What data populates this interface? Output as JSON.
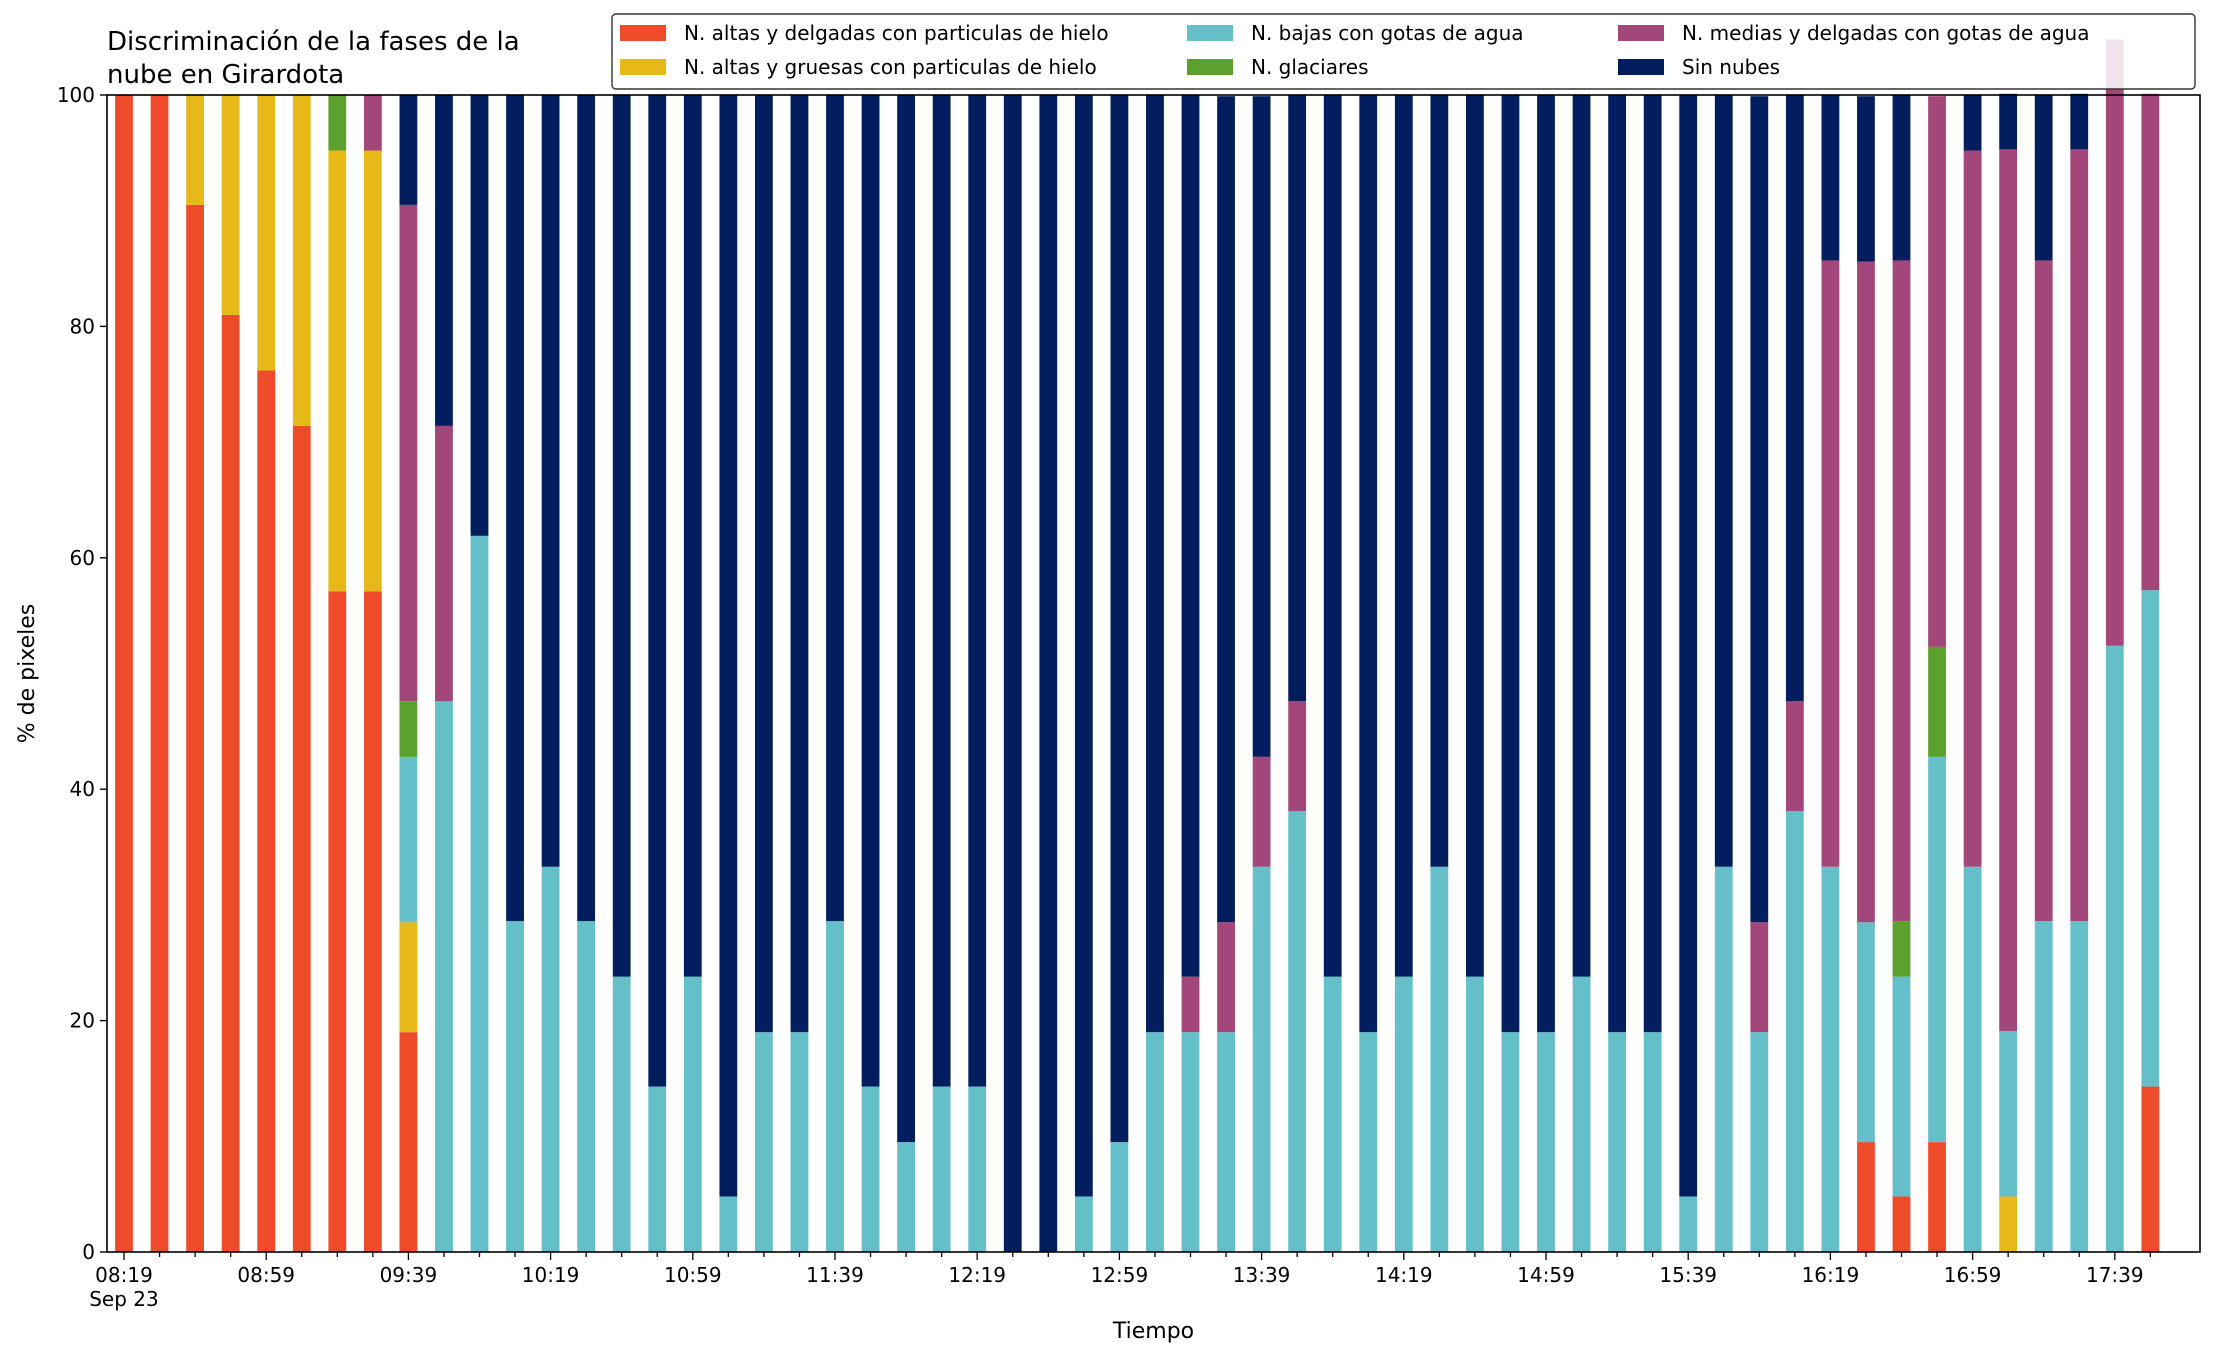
{
  "chart_data": {
    "type": "bar",
    "stacked": true,
    "title": "Discriminación de la fases de la\nnube en Girardota",
    "xlabel": "Tiempo",
    "ylabel": "% de pixeles",
    "ylim": [
      0,
      100
    ],
    "yticks": [
      0,
      20,
      40,
      60,
      80,
      100
    ],
    "x_tick_labels": [
      "08:19\nSep 23",
      "08:59",
      "09:39",
      "10:19",
      "10:59",
      "11:39",
      "12:19",
      "12:59",
      "13:39",
      "14:19",
      "14:59",
      "15:39",
      "16:19",
      "16:59",
      "17:39"
    ],
    "grid": false,
    "legend_position": "top-right",
    "categories": [
      "08:19",
      "08:29",
      "08:39",
      "08:49",
      "08:59",
      "09:09",
      "09:19",
      "09:29",
      "09:39",
      "09:49",
      "09:59",
      "10:09",
      "10:19",
      "10:29",
      "10:39",
      "10:49",
      "10:59",
      "11:09",
      "11:19",
      "11:29",
      "11:39",
      "11:49",
      "11:59",
      "12:09",
      "12:19",
      "12:29",
      "12:39",
      "12:49",
      "12:59",
      "13:09",
      "13:19",
      "13:29",
      "13:39",
      "13:49",
      "13:59",
      "14:09",
      "14:19",
      "14:29",
      "14:39",
      "14:49",
      "14:59",
      "15:09",
      "15:19",
      "15:29",
      "15:39",
      "15:49",
      "15:59",
      "16:09",
      "16:19",
      "16:29",
      "16:39",
      "16:49",
      "16:59",
      "17:09",
      "17:19",
      "17:29",
      "17:39",
      "17:49"
    ],
    "series": [
      {
        "name": "N. altas y delgadas con particulas de hielo",
        "color": "#ee4b2b",
        "values": [
          100,
          100,
          90.5,
          81,
          76.2,
          71.4,
          57.1,
          57.1,
          19,
          0,
          0,
          0,
          0,
          0,
          0,
          0,
          0,
          0,
          0,
          0,
          0,
          0,
          0,
          0,
          0,
          0,
          0,
          0,
          0,
          0,
          0,
          0,
          0,
          0,
          0,
          0,
          0,
          0,
          0,
          0,
          0,
          0,
          0,
          0,
          0,
          0,
          0,
          0,
          0,
          9.5,
          4.8,
          9.5,
          0,
          0,
          0,
          0,
          0,
          14.3
        ]
      },
      {
        "name": "N. altas y gruesas con particulas de hielo",
        "color": "#e6b818",
        "values": [
          0,
          0,
          9.5,
          19,
          23.8,
          28.6,
          38.1,
          38.1,
          9.5,
          0,
          0,
          0,
          0,
          0,
          0,
          0,
          0,
          0,
          0,
          0,
          0,
          0,
          0,
          0,
          0,
          0,
          0,
          0,
          0,
          0,
          0,
          0,
          0,
          0,
          0,
          0,
          0,
          0,
          0,
          0,
          0,
          0,
          0,
          0,
          0,
          0,
          0,
          0,
          0,
          0,
          0,
          0,
          0,
          4.8,
          0,
          0,
          0,
          0
        ]
      },
      {
        "name": "N. bajas con gotas de agua",
        "color": "#65bfc9",
        "values": [
          0,
          0,
          0,
          0,
          0,
          0,
          0,
          0,
          14.3,
          47.6,
          61.9,
          28.6,
          33.3,
          28.6,
          23.8,
          14.3,
          23.8,
          4.8,
          19,
          19,
          28.6,
          14.3,
          9.5,
          14.3,
          14.3,
          0,
          0,
          4.8,
          9.5,
          19,
          19,
          19,
          33.3,
          38.1,
          23.8,
          19,
          23.8,
          33.3,
          23.8,
          19,
          19,
          23.8,
          19,
          19,
          4.8,
          33.3,
          19,
          38.1,
          33.3,
          19,
          19,
          33.3,
          33.3,
          14.3,
          28.6,
          28.6,
          52.4,
          42.9
        ]
      },
      {
        "name": "N. glaciares",
        "color": "#5ca12e",
        "values": [
          0,
          0,
          0,
          0,
          0,
          0,
          4.8,
          0,
          4.8,
          0,
          0,
          0,
          0,
          0,
          0,
          0,
          0,
          0,
          0,
          0,
          0,
          0,
          0,
          0,
          0,
          0,
          0,
          0,
          0,
          0,
          0,
          0,
          0,
          0,
          0,
          0,
          0,
          0,
          0,
          0,
          0,
          0,
          0,
          0,
          0,
          0,
          0,
          0,
          0,
          0,
          4.8,
          9.5,
          0,
          0,
          0,
          0,
          0,
          0
        ]
      },
      {
        "name": "N. medias y delgadas con gotas de agua",
        "color": "#a3467a",
        "values": [
          0,
          0,
          0,
          0,
          0,
          0,
          0,
          4.8,
          42.9,
          23.8,
          0,
          0,
          0,
          0,
          0,
          0,
          0,
          0,
          0,
          0,
          0,
          0,
          0,
          0,
          0,
          0,
          0,
          0,
          0,
          0,
          4.8,
          9.5,
          9.5,
          9.5,
          0,
          0,
          0,
          0,
          0,
          0,
          0,
          0,
          0,
          0,
          0,
          0,
          9.5,
          9.5,
          52.4,
          57.1,
          57.1,
          47.6,
          61.9,
          76.2,
          57.1,
          66.7,
          52.4,
          42.9
        ]
      },
      {
        "name": "Sin nubes",
        "color": "#031e5e",
        "values": [
          0,
          0,
          0,
          0,
          0,
          0,
          0,
          0,
          9.5,
          28.6,
          38.1,
          71.4,
          66.7,
          71.4,
          76.2,
          85.7,
          76.2,
          95.2,
          81,
          81,
          71.4,
          85.7,
          90.5,
          85.7,
          85.7,
          100,
          100,
          95.2,
          90.5,
          81,
          76.2,
          71.4,
          57.1,
          52.4,
          76.2,
          81,
          76.2,
          66.7,
          76.2,
          81,
          81,
          76.2,
          81,
          81,
          95.2,
          66.7,
          71.4,
          52.4,
          14.3,
          14.3,
          14.3,
          0,
          4.8,
          4.8,
          14.3,
          4.8,
          0,
          0
        ]
      }
    ]
  }
}
